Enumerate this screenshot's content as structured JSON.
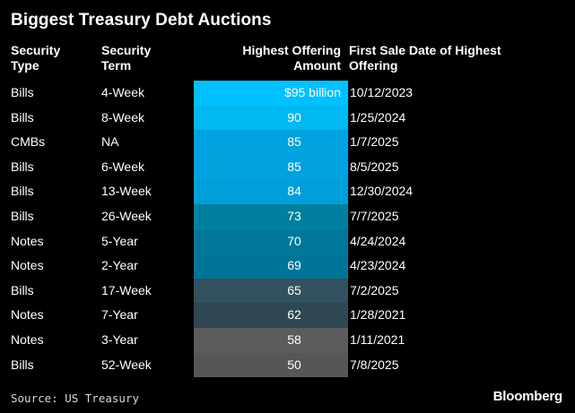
{
  "chart_data": {
    "type": "table",
    "title": "Biggest Treasury Debt Auctions",
    "columns": [
      "Security Type",
      "Security Term",
      "Highest Offering Amount",
      "First Sale Date of Highest Offering"
    ],
    "rows": [
      {
        "type": "Bills",
        "term": "4-Week",
        "amount_label": "$95 billion",
        "amount": 95,
        "date": "10/12/2023",
        "color": "#00c0ff"
      },
      {
        "type": "Bills",
        "term": "8-Week",
        "amount_label": "90",
        "amount": 90,
        "date": "1/25/2024",
        "color": "#00b8f2"
      },
      {
        "type": "CMBs",
        "term": "NA",
        "amount_label": "85",
        "amount": 85,
        "date": "1/7/2025",
        "color": "#00a2df"
      },
      {
        "type": "Bills",
        "term": "6-Week",
        "amount_label": "85",
        "amount": 85,
        "date": "8/5/2025",
        "color": "#00a2df"
      },
      {
        "type": "Bills",
        "term": "13-Week",
        "amount_label": "84",
        "amount": 84,
        "date": "12/30/2024",
        "color": "#009fd9"
      },
      {
        "type": "Bills",
        "term": "26-Week",
        "amount_label": "73",
        "amount": 73,
        "date": "7/7/2025",
        "color": "#00809e"
      },
      {
        "type": "Notes",
        "term": "5-Year",
        "amount_label": "70",
        "amount": 70,
        "date": "4/24/2024",
        "color": "#00779a"
      },
      {
        "type": "Notes",
        "term": "2-Year",
        "amount_label": "69",
        "amount": 69,
        "date": "4/23/2024",
        "color": "#007597"
      },
      {
        "type": "Bills",
        "term": "17-Week",
        "amount_label": "65",
        "amount": 65,
        "date": "7/2/2025",
        "color": "#33515e"
      },
      {
        "type": "Notes",
        "term": "7-Year",
        "amount_label": "62",
        "amount": 62,
        "date": "1/28/2021",
        "color": "#2e4753"
      },
      {
        "type": "Notes",
        "term": "3-Year",
        "amount_label": "58",
        "amount": 58,
        "date": "1/11/2021",
        "color": "#5c5c5c"
      },
      {
        "type": "Bills",
        "term": "52-Week",
        "amount_label": "50",
        "amount": 50,
        "date": "7/8/2025",
        "color": "#565656"
      }
    ]
  },
  "header": {
    "type_label": "Security\nType",
    "term_label": "Security\nTerm",
    "amount_label": "Highest Offering\nAmount",
    "date_label": "First Sale Date of Highest\nOffering"
  },
  "footer": {
    "source": "Source: US Treasury",
    "brand": "Bloomberg"
  }
}
